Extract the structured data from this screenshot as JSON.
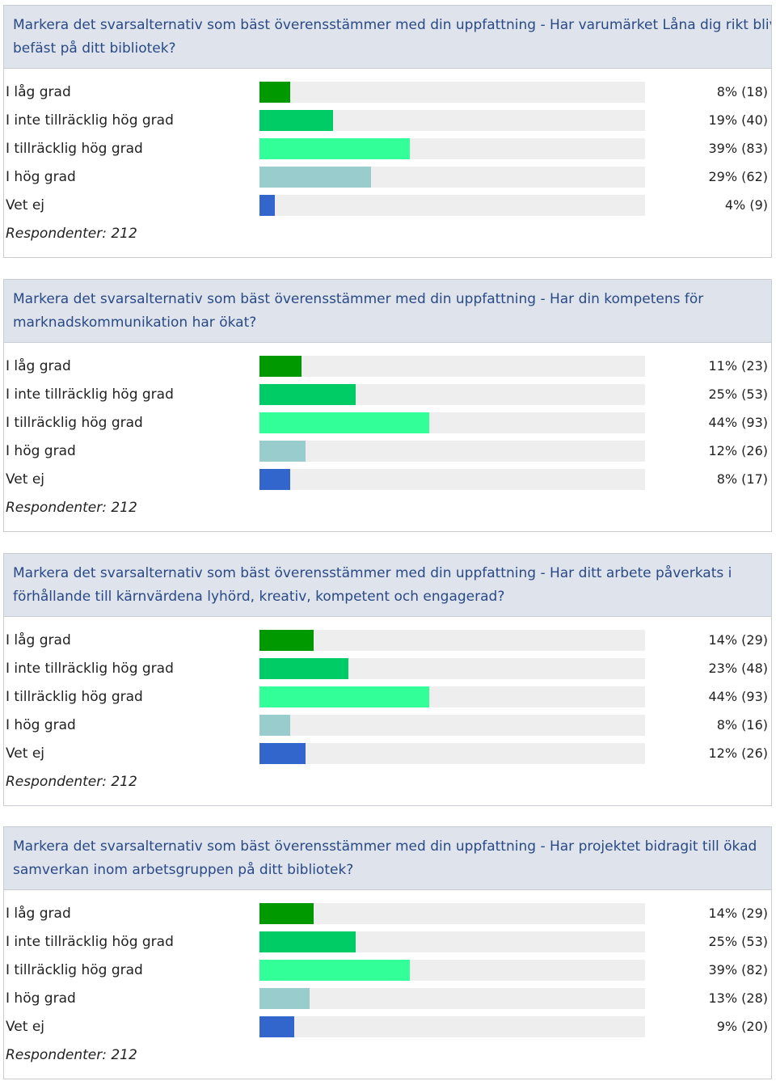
{
  "colors": {
    "header_bg": "#dfe3ec",
    "title": "#294a86",
    "track": "#eeeeee",
    "bars": [
      "#009900",
      "#00cc66",
      "#33ff99",
      "#99cccc",
      "#3366cc"
    ]
  },
  "chart_data": [
    {
      "type": "bar",
      "orientation": "horizontal",
      "title": "Markera det svarsalternativ som bäst överensstämmer med din uppfattning - Har varumärket Låna dig rikt blivit befäst på ditt bibliotek?",
      "categories": [
        "I låg grad",
        "I inte tillräcklig hög grad",
        "I tillräcklig hög grad",
        "I hög grad",
        "Vet ej"
      ],
      "values": [
        8,
        19,
        39,
        29,
        4
      ],
      "counts": [
        18,
        40,
        83,
        62,
        9
      ],
      "value_labels": [
        "8% (18)",
        "19% (40)",
        "39% (83)",
        "29% (62)",
        "4% (9)"
      ],
      "respondents": "Respondenter: 212",
      "xlim": [
        0,
        100
      ],
      "grid": false
    },
    {
      "type": "bar",
      "orientation": "horizontal",
      "title": "Markera det svarsalternativ som bäst överensstämmer med din uppfattning - Har din kompetens för marknadskommunikation har ökat?",
      "categories": [
        "I låg grad",
        "I inte tillräcklig hög grad",
        "I tillräcklig hög grad",
        "I hög grad",
        "Vet ej"
      ],
      "values": [
        11,
        25,
        44,
        12,
        8
      ],
      "counts": [
        23,
        53,
        93,
        26,
        17
      ],
      "value_labels": [
        "11% (23)",
        "25% (53)",
        "44% (93)",
        "12% (26)",
        "8% (17)"
      ],
      "respondents": "Respondenter: 212",
      "xlim": [
        0,
        100
      ],
      "grid": false
    },
    {
      "type": "bar",
      "orientation": "horizontal",
      "title": "Markera det svarsalternativ som bäst överensstämmer med din uppfattning - Har ditt arbete påverkats i förhållande till kärnvärdena lyhörd, kreativ, kompetent och engagerad?",
      "categories": [
        "I låg grad",
        "I inte tillräcklig hög grad",
        "I tillräcklig hög grad",
        "I hög grad",
        "Vet ej"
      ],
      "values": [
        14,
        23,
        44,
        8,
        12
      ],
      "counts": [
        29,
        48,
        93,
        16,
        26
      ],
      "value_labels": [
        "14% (29)",
        "23% (48)",
        "44% (93)",
        "8% (16)",
        "12% (26)"
      ],
      "respondents": "Respondenter: 212",
      "xlim": [
        0,
        100
      ],
      "grid": false
    },
    {
      "type": "bar",
      "orientation": "horizontal",
      "title": "Markera det svarsalternativ som bäst överensstämmer med din uppfattning - Har projektet bidragit till ökad samverkan inom arbetsgruppen på ditt bibliotek?",
      "categories": [
        "I låg grad",
        "I inte tillräcklig hög grad",
        "I tillräcklig hög grad",
        "I hög grad",
        "Vet ej"
      ],
      "values": [
        14,
        25,
        39,
        13,
        9
      ],
      "counts": [
        29,
        53,
        82,
        28,
        20
      ],
      "value_labels": [
        "14% (29)",
        "25% (53)",
        "39% (82)",
        "13% (28)",
        "9% (20)"
      ],
      "respondents": "Respondenter: 212",
      "xlim": [
        0,
        100
      ],
      "grid": false
    }
  ]
}
